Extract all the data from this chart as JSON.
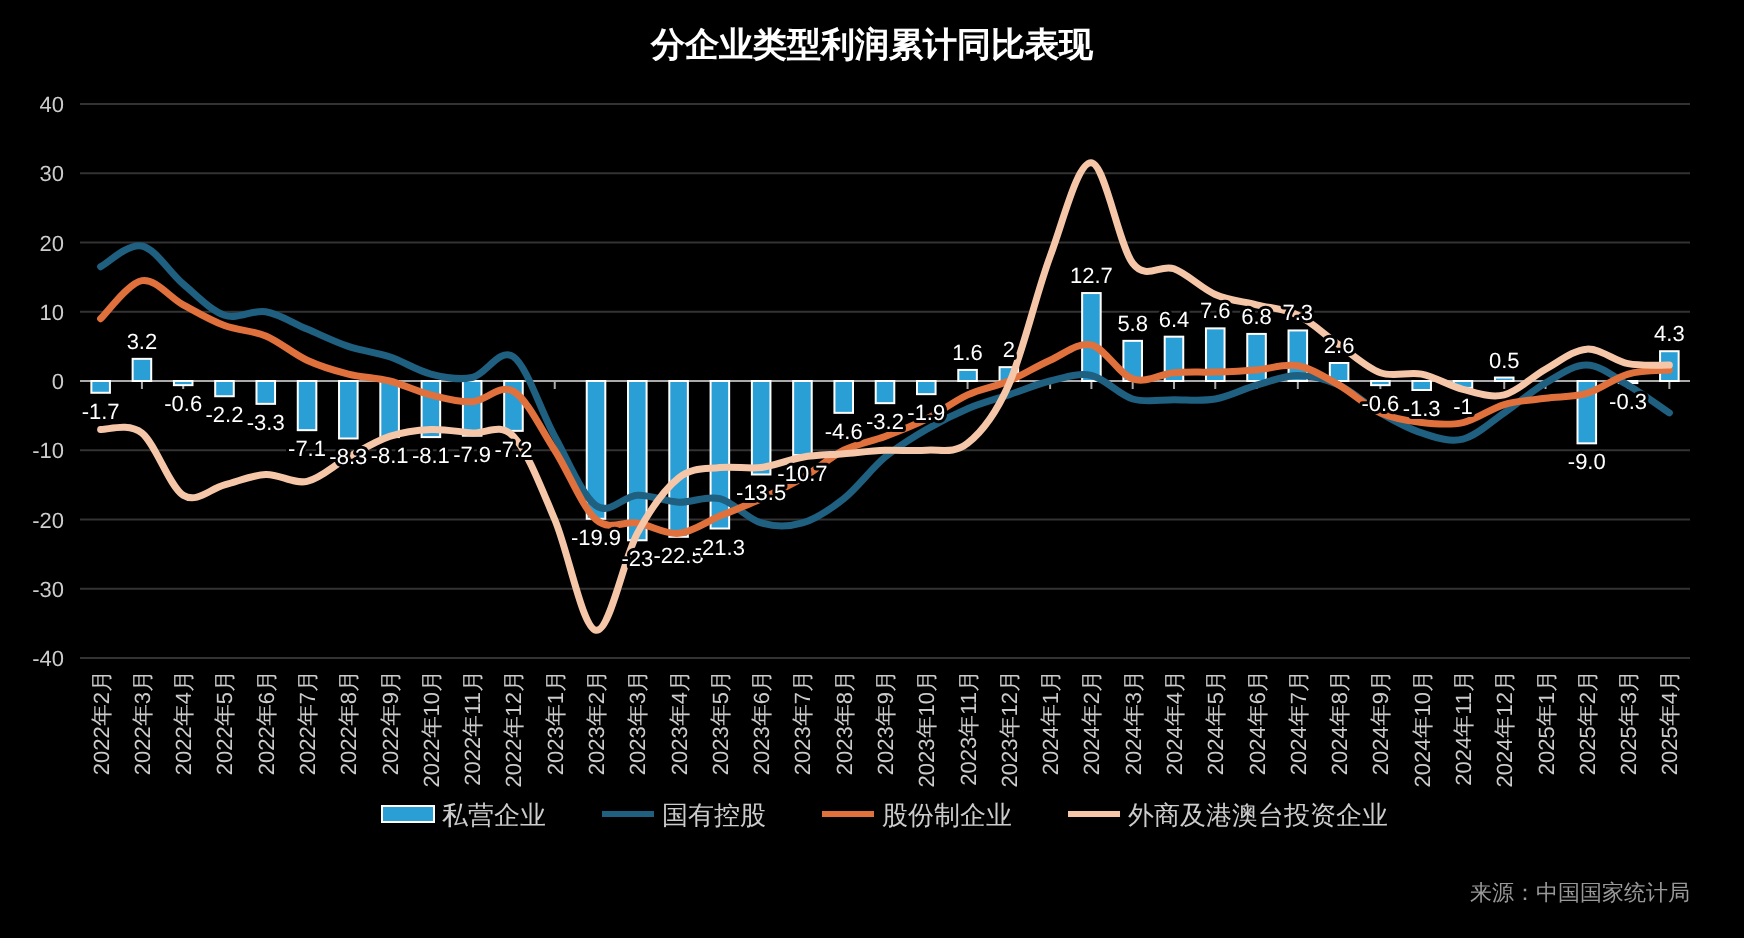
{
  "chart_data": {
    "type": "bar",
    "title": "分企业类型利润累计同比表现",
    "categories": [
      "2022年2月",
      "2022年3月",
      "2022年4月",
      "2022年5月",
      "2022年6月",
      "2022年7月",
      "2022年8月",
      "2022年9月",
      "2022年10月",
      "2022年11月",
      "2022年12月",
      "2023年1月",
      "2023年2月",
      "2023年3月",
      "2023年4月",
      "2023年5月",
      "2023年6月",
      "2023年7月",
      "2023年8月",
      "2023年9月",
      "2023年10月",
      "2023年11月",
      "2023年12月",
      "2024年1月",
      "2024年2月",
      "2024年3月",
      "2024年4月",
      "2024年5月",
      "2024年6月",
      "2024年7月",
      "2024年8月",
      "2024年9月",
      "2024年10月",
      "2024年11月",
      "2024年12月",
      "2025年1月",
      "2025年2月",
      "2025年3月",
      "2025年4月"
    ],
    "series": [
      {
        "name": "私营企业",
        "color": "#2a9fd6",
        "values": [
          -1.7,
          3.2,
          -0.6,
          -2.2,
          -3.3,
          -7.1,
          -8.3,
          -8.1,
          -8.1,
          -7.9,
          -7.2,
          null,
          -19.9,
          -23,
          -22.5,
          -21.3,
          -13.5,
          -10.7,
          -4.6,
          -3.2,
          -1.9,
          1.6,
          2,
          null,
          12.7,
          5.8,
          6.4,
          7.6,
          6.8,
          7.3,
          2.6,
          -0.6,
          -1.3,
          -1,
          0.5,
          null,
          -9.0,
          -0.3,
          4.3
        ],
        "value_labels": [
          "-1.7",
          "3.2",
          "-0.6",
          "-2.2",
          "-3.3",
          "-7.1",
          "-8.3",
          "-8.1",
          "-8.1",
          "-7.9",
          "-7.2",
          null,
          "-19.9",
          "-23",
          "-22.5",
          "-21.3",
          "-13.5",
          "-10.7",
          "-4.6",
          "-3.2",
          "-1.9",
          "1.6",
          "2",
          null,
          "12.7",
          "5.8",
          "6.4",
          "7.6",
          "6.8",
          "7.3",
          "2.6",
          "-0.6",
          "-1.3",
          "-1",
          "0.5",
          null,
          "-9.0",
          "-0.3",
          "4.3"
        ]
      },
      {
        "type": "line",
        "name": "国有控股",
        "color": "#1f5f80",
        "values": [
          16.5,
          19.5,
          14,
          9.5,
          10,
          7.5,
          5,
          3.5,
          1,
          0.5,
          3.5,
          -8,
          -18,
          -16.5,
          -17.5,
          -17,
          -20.5,
          -20.5,
          -17,
          -11,
          -7,
          -4,
          -2,
          0,
          0.8,
          -2.6,
          -2.7,
          -2.6,
          -0.6,
          0.8,
          -0.6,
          -4.6,
          -7.5,
          -8.4,
          -4.6,
          -0.3,
          2.3,
          -0.6,
          -4.6
        ]
      },
      {
        "type": "line",
        "name": "股份制企业",
        "color": "#e0703c",
        "values": [
          9,
          14.5,
          11,
          8,
          6.5,
          3,
          1,
          0,
          -2,
          -3,
          -1.5,
          -10,
          -20,
          -20.5,
          -22,
          -19.5,
          -17,
          -14,
          -10,
          -8,
          -5.5,
          -2,
          0,
          3,
          5.2,
          0.3,
          1.2,
          1.3,
          1.6,
          2.2,
          -0.6,
          -4.6,
          -6,
          -6,
          -3.4,
          -2.5,
          -1.8,
          1,
          1.6
        ]
      },
      {
        "type": "line",
        "name": "外商及港澳台投资企业",
        "color": "#f5c6a8",
        "values": [
          -7,
          -7.5,
          -16.5,
          -15,
          -13.5,
          -14.5,
          -11,
          -8,
          -7,
          -7.5,
          -8,
          -20,
          -36,
          -22,
          -14,
          -12.5,
          -12.5,
          -11,
          -10.5,
          -10,
          -10,
          -9,
          -0.5,
          18,
          31.5,
          17,
          16.2,
          12.5,
          11,
          9.5,
          5.2,
          1.2,
          1,
          -1.2,
          -2,
          1.7,
          4.6,
          2.5,
          2.3
        ]
      }
    ],
    "ylim": [
      -40,
      40
    ],
    "yticks": [
      -40,
      -30,
      -20,
      -10,
      0,
      10,
      20,
      30,
      40
    ],
    "grid": "y",
    "legend": "bottom",
    "annotations": [
      "来源：中国国家统计局"
    ]
  }
}
